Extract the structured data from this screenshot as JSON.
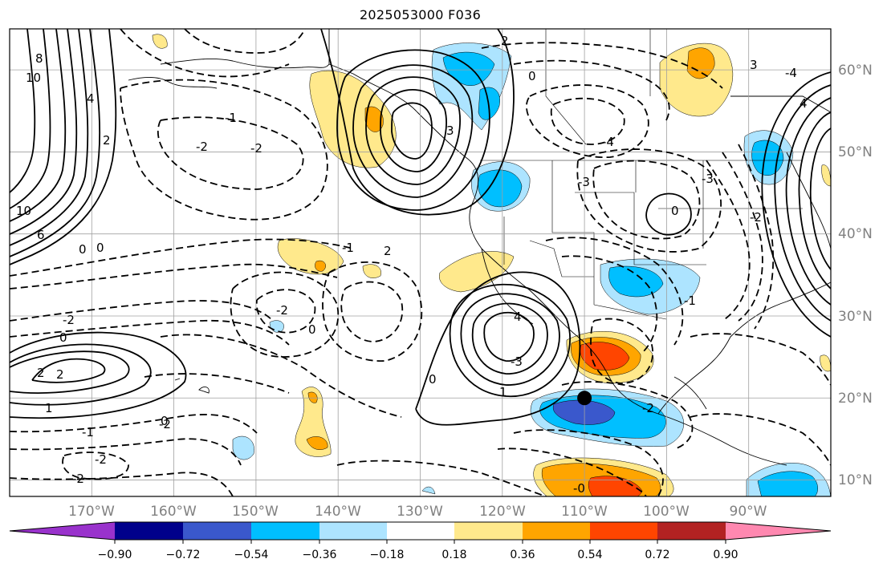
{
  "title": "2025053000 F036",
  "colors": {
    "c_m090_below": "#9932cc",
    "c_m090": "#00008b",
    "c_m072": "#3a58cc",
    "c_m054": "#00bfff",
    "c_m036": "#ade4ff",
    "c_neutral": "#ffffff",
    "c_p018": "#ffe98c",
    "c_p036": "#ffa500",
    "c_p054": "#ff4500",
    "c_p072": "#b22222",
    "c_p090_above": "#ff88b0",
    "contour": "#000000",
    "grid": "#a0a0a0"
  },
  "longitude_labels": [
    "170°W",
    "160°W",
    "150°W",
    "140°W",
    "130°W",
    "120°W",
    "110°W",
    "100°W",
    "90°W"
  ],
  "latitude_labels": [
    "60°N",
    "50°N",
    "40°N",
    "30°N",
    "20°N",
    "10°N"
  ],
  "colorbar": {
    "tick_labels": [
      "−0.90",
      "−0.72",
      "−0.54",
      "−0.36",
      "−0.18",
      "0.18",
      "0.36",
      "0.54",
      "0.72",
      "0.90"
    ]
  },
  "contour_labels": [
    "8",
    "10",
    "4",
    "2",
    "10",
    "6",
    "0",
    "0",
    "-2",
    "-2",
    "-1",
    "2",
    "-1",
    "-2",
    "0",
    "0",
    "2",
    "-2",
    "2",
    "1",
    "-1",
    "-2",
    "-2",
    "-2",
    "0",
    "-3",
    "4",
    "1",
    "2",
    "3",
    "0",
    "-4",
    "-3",
    "-4",
    "0",
    "-3",
    "-2",
    "-1",
    "3",
    "4",
    "-2",
    "0",
    "-0"
  ],
  "markers": [
    {
      "name": "center-point",
      "lon": -110,
      "lat": 20
    }
  ]
}
